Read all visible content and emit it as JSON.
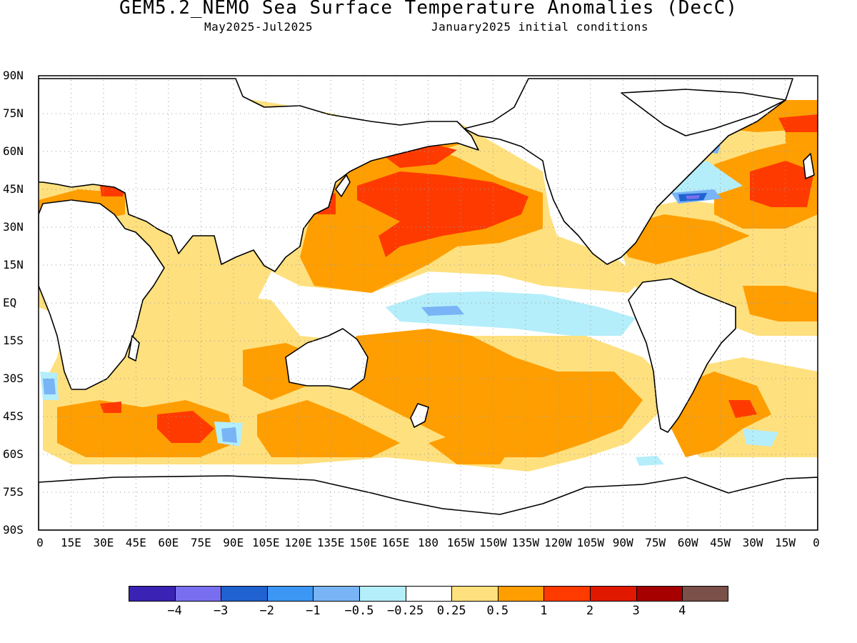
{
  "title": "GEM5.2_NEMO Sea Surface Temperature Anomalies (DecC)",
  "subtitle_period": "May2025-Jul2025",
  "subtitle_init": "January2025 initial conditions",
  "y_ticks": [
    "90N",
    "75N",
    "60N",
    "45N",
    "30N",
    "15N",
    "EQ",
    "15S",
    "30S",
    "45S",
    "60S",
    "75S",
    "90S"
  ],
  "x_ticks": [
    "0",
    "15E",
    "30E",
    "45E",
    "60E",
    "75E",
    "90E",
    "105E",
    "120E",
    "135E",
    "150E",
    "165E",
    "180",
    "165W",
    "150W",
    "135W",
    "120W",
    "105W",
    "90W",
    "75W",
    "60W",
    "45W",
    "30W",
    "15W",
    "0"
  ],
  "colorbar": {
    "colors": [
      "#3a22b4",
      "#7a6ef0",
      "#1f62d0",
      "#3c96f4",
      "#78b4f6",
      "#b4eefa",
      "#ffffff",
      "#ffe07e",
      "#ff9e00",
      "#ff3a00",
      "#e01800",
      "#a60000",
      "#7a5048"
    ],
    "labels": [
      "-4",
      "-3",
      "-2",
      "-1",
      "-0.5",
      "-0.25",
      "0.25",
      "0.5",
      "1",
      "2",
      "3",
      "4"
    ]
  },
  "map": {
    "projection": "cylindrical equidistant",
    "lon_range": [
      0,
      360
    ],
    "lat_range": [
      -90,
      90
    ],
    "grid": "dotted"
  }
}
